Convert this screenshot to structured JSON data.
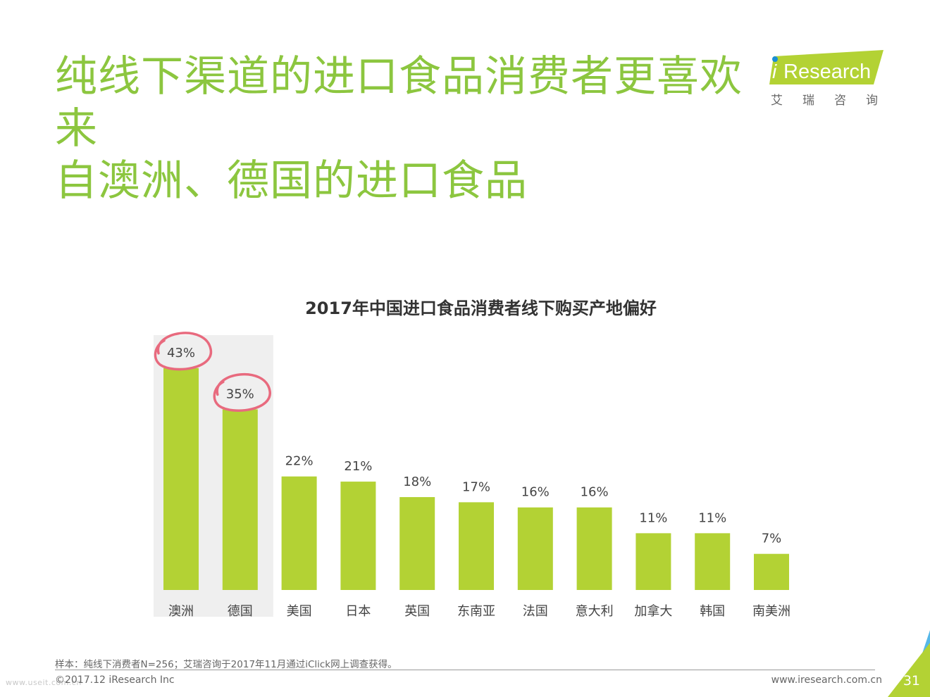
{
  "header": {
    "title_line1": "纯线下渠道的进口食品消费者更喜欢来",
    "title_line2": "自澳洲、德国的进口食品"
  },
  "logo": {
    "brand": "Research",
    "brand_prefix": "i",
    "subtitle": "艾瑞咨询",
    "colors": {
      "accent": "#b3d234",
      "brand_text": "#ffffff",
      "dot": "#1a8fd6"
    }
  },
  "chart_data": {
    "type": "bar",
    "title": "2017年中国进口食品消费者线下购买产地偏好",
    "categories": [
      "澳洲",
      "德国",
      "美国",
      "日本",
      "英国",
      "东南亚",
      "法国",
      "意大利",
      "加拿大",
      "韩国",
      "南美洲"
    ],
    "values": [
      43,
      35,
      22,
      21,
      18,
      17,
      16,
      16,
      11,
      11,
      7
    ],
    "value_labels": [
      "43%",
      "35%",
      "22%",
      "21%",
      "18%",
      "17%",
      "16%",
      "16%",
      "11%",
      "11%",
      "7%"
    ],
    "highlighted": [
      "澳洲",
      "德国"
    ],
    "ylim": [
      0,
      45
    ],
    "xlabel": "",
    "ylabel": "",
    "colors": {
      "bar": "#b3d234",
      "highlight_bg": "#efefef",
      "circle": "#e86a7e"
    }
  },
  "footer": {
    "note": "样本：纯线下消费者N=256；艾瑞咨询于2017年11月通过iClick网上调查获得。",
    "copyright": "©2017.12 iResearch Inc",
    "watermark": "www.useit.com.cn",
    "website": "www.iresearch.com.cn",
    "page_number": "31",
    "colors": {
      "corner_green": "#b3d234",
      "corner_blue": "#55b7e8"
    }
  }
}
